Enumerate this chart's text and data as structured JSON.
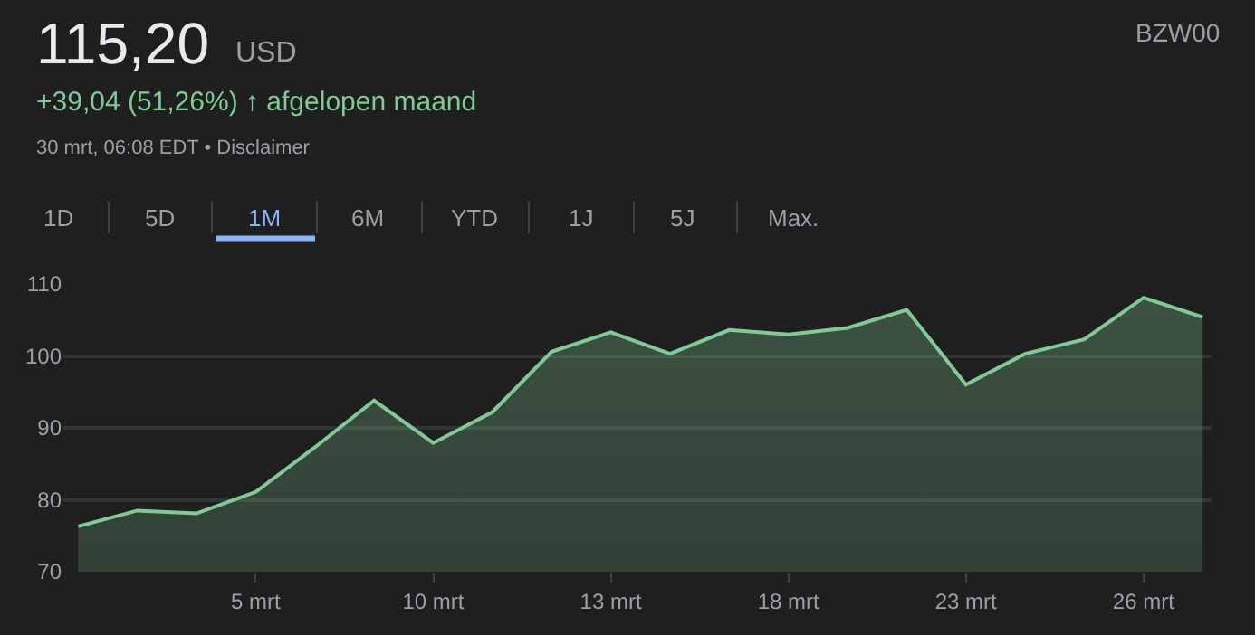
{
  "chart_data": {
    "type": "area",
    "title": "115,20",
    "subtitle": "USD",
    "annotations": [
      "+39,04 (51,26%) ↑ afgelopen maand",
      "30 mrt, 06:08 EDT • Disclaimer",
      "BZW00",
      "1D",
      "5D",
      "1M",
      "6M",
      "YTD",
      "1J",
      "5J",
      "Max."
    ],
    "categories": [
      null,
      null,
      null,
      "5 mrt",
      null,
      null,
      "10 mrt",
      null,
      null,
      "13 mrt",
      null,
      null,
      "18 mrt",
      null,
      null,
      "23 mrt",
      null,
      null,
      "26 mrt",
      null
    ],
    "series": [
      {
        "color": "#81c995",
        "values": [
          76.3,
          78.5,
          78.1,
          81.1,
          87.3,
          93.8,
          87.9,
          92.2,
          100.6,
          103.3,
          100.3,
          103.6,
          103.0,
          103.9,
          106.4,
          96.0,
          100.3,
          102.3,
          108.1,
          105.4
        ]
      }
    ],
    "ylim": [
      70,
      110
    ],
    "yticks": [
      70,
      80,
      90,
      100,
      110
    ],
    "grid": "y",
    "legend": false,
    "marker": "none",
    "line_style": "solid"
  }
}
